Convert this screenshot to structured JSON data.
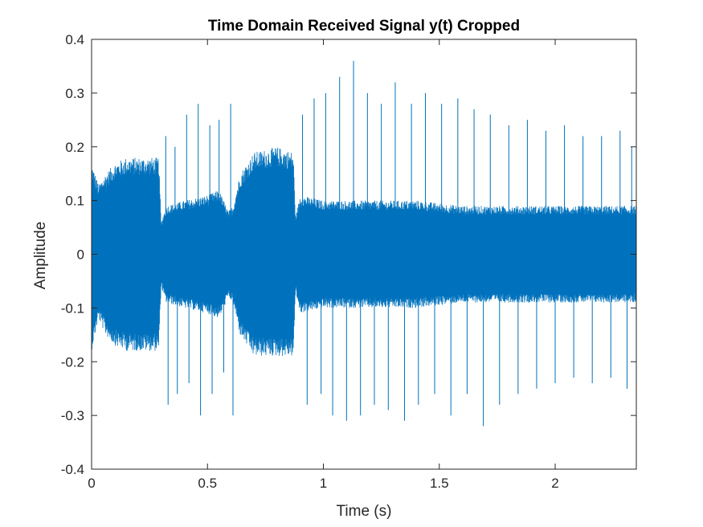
{
  "chart_data": {
    "type": "line",
    "title": "Time Domain Received Signal y(t) Cropped",
    "xlabel": "Time (s)",
    "ylabel": "Amplitude",
    "xlim": [
      0,
      2.35
    ],
    "ylim": [
      -0.4,
      0.4
    ],
    "xticks": [
      0,
      0.5,
      1,
      1.5,
      2
    ],
    "xtick_labels": [
      "0",
      "0.5",
      "1",
      "1.5",
      "2"
    ],
    "yticks": [
      -0.4,
      -0.3,
      -0.2,
      -0.1,
      0,
      0.1,
      0.2,
      0.3,
      0.4
    ],
    "ytick_labels": [
      "-0.4",
      "-0.3",
      "-0.2",
      "-0.1",
      "0",
      "0.1",
      "0.2",
      "0.3",
      "0.4"
    ],
    "grid": false,
    "legend": "none",
    "box": true,
    "colors": {
      "series": "#0072BD",
      "axes": "#262626"
    },
    "series": [
      {
        "envelope": [
          {
            "t": 0.0,
            "max": 0.17,
            "min": -0.18
          },
          {
            "t": 0.03,
            "max": 0.13,
            "min": -0.12
          },
          {
            "t": 0.06,
            "max": 0.15,
            "min": -0.15
          },
          {
            "t": 0.1,
            "max": 0.17,
            "min": -0.17
          },
          {
            "t": 0.15,
            "max": 0.18,
            "min": -0.18
          },
          {
            "t": 0.2,
            "max": 0.18,
            "min": -0.18
          },
          {
            "t": 0.25,
            "max": 0.18,
            "min": -0.18
          },
          {
            "t": 0.29,
            "max": 0.18,
            "min": -0.18
          },
          {
            "t": 0.3,
            "max": 0.06,
            "min": -0.06
          },
          {
            "t": 0.32,
            "max": 0.09,
            "min": -0.09
          },
          {
            "t": 0.4,
            "max": 0.1,
            "min": -0.1
          },
          {
            "t": 0.5,
            "max": 0.11,
            "min": -0.11
          },
          {
            "t": 0.55,
            "max": 0.12,
            "min": -0.12
          },
          {
            "t": 0.59,
            "max": 0.08,
            "min": -0.08
          },
          {
            "t": 0.61,
            "max": 0.09,
            "min": -0.09
          },
          {
            "t": 0.64,
            "max": 0.15,
            "min": -0.15
          },
          {
            "t": 0.7,
            "max": 0.19,
            "min": -0.19
          },
          {
            "t": 0.8,
            "max": 0.2,
            "min": -0.19
          },
          {
            "t": 0.87,
            "max": 0.19,
            "min": -0.19
          },
          {
            "t": 0.88,
            "max": 0.07,
            "min": -0.07
          },
          {
            "t": 0.9,
            "max": 0.11,
            "min": -0.11
          },
          {
            "t": 1.0,
            "max": 0.1,
            "min": -0.1
          },
          {
            "t": 1.2,
            "max": 0.1,
            "min": -0.1
          },
          {
            "t": 1.4,
            "max": 0.1,
            "min": -0.1
          },
          {
            "t": 1.6,
            "max": 0.09,
            "min": -0.09
          },
          {
            "t": 1.8,
            "max": 0.09,
            "min": -0.09
          },
          {
            "t": 2.0,
            "max": 0.09,
            "min": -0.09
          },
          {
            "t": 2.2,
            "max": 0.09,
            "min": -0.09
          },
          {
            "t": 2.35,
            "max": 0.09,
            "min": -0.09
          }
        ],
        "spikes": [
          {
            "t": 0.32,
            "value": 0.22
          },
          {
            "t": 0.33,
            "value": -0.28
          },
          {
            "t": 0.36,
            "value": 0.2
          },
          {
            "t": 0.37,
            "value": -0.26
          },
          {
            "t": 0.41,
            "value": 0.26
          },
          {
            "t": 0.42,
            "value": -0.24
          },
          {
            "t": 0.46,
            "value": 0.28
          },
          {
            "t": 0.47,
            "value": -0.3
          },
          {
            "t": 0.51,
            "value": 0.24
          },
          {
            "t": 0.52,
            "value": -0.26
          },
          {
            "t": 0.55,
            "value": 0.25
          },
          {
            "t": 0.57,
            "value": -0.22
          },
          {
            "t": 0.6,
            "value": 0.28
          },
          {
            "t": 0.61,
            "value": -0.3
          },
          {
            "t": 0.91,
            "value": 0.26
          },
          {
            "t": 0.93,
            "value": -0.28
          },
          {
            "t": 0.96,
            "value": 0.29
          },
          {
            "t": 0.99,
            "value": -0.26
          },
          {
            "t": 1.01,
            "value": 0.3
          },
          {
            "t": 1.04,
            "value": -0.3
          },
          {
            "t": 1.07,
            "value": 0.33
          },
          {
            "t": 1.1,
            "value": -0.31
          },
          {
            "t": 1.13,
            "value": 0.36
          },
          {
            "t": 1.16,
            "value": -0.3
          },
          {
            "t": 1.19,
            "value": 0.3
          },
          {
            "t": 1.22,
            "value": -0.28
          },
          {
            "t": 1.25,
            "value": 0.28
          },
          {
            "t": 1.28,
            "value": -0.29
          },
          {
            "t": 1.31,
            "value": 0.32
          },
          {
            "t": 1.35,
            "value": -0.31
          },
          {
            "t": 1.38,
            "value": 0.28
          },
          {
            "t": 1.41,
            "value": -0.28
          },
          {
            "t": 1.44,
            "value": 0.3
          },
          {
            "t": 1.48,
            "value": -0.26
          },
          {
            "t": 1.51,
            "value": 0.28
          },
          {
            "t": 1.55,
            "value": -0.3
          },
          {
            "t": 1.58,
            "value": 0.29
          },
          {
            "t": 1.62,
            "value": -0.26
          },
          {
            "t": 1.65,
            "value": 0.27
          },
          {
            "t": 1.69,
            "value": -0.32
          },
          {
            "t": 1.72,
            "value": 0.26
          },
          {
            "t": 1.76,
            "value": -0.28
          },
          {
            "t": 1.8,
            "value": 0.24
          },
          {
            "t": 1.84,
            "value": -0.26
          },
          {
            "t": 1.88,
            "value": 0.25
          },
          {
            "t": 1.92,
            "value": -0.25
          },
          {
            "t": 1.96,
            "value": 0.23
          },
          {
            "t": 2.0,
            "value": -0.24
          },
          {
            "t": 2.04,
            "value": 0.24
          },
          {
            "t": 2.08,
            "value": -0.23
          },
          {
            "t": 2.12,
            "value": 0.22
          },
          {
            "t": 2.16,
            "value": -0.24
          },
          {
            "t": 2.2,
            "value": 0.22
          },
          {
            "t": 2.24,
            "value": -0.23
          },
          {
            "t": 2.28,
            "value": 0.23
          },
          {
            "t": 2.31,
            "value": -0.25
          },
          {
            "t": 2.33,
            "value": 0.2
          }
        ]
      }
    ]
  }
}
